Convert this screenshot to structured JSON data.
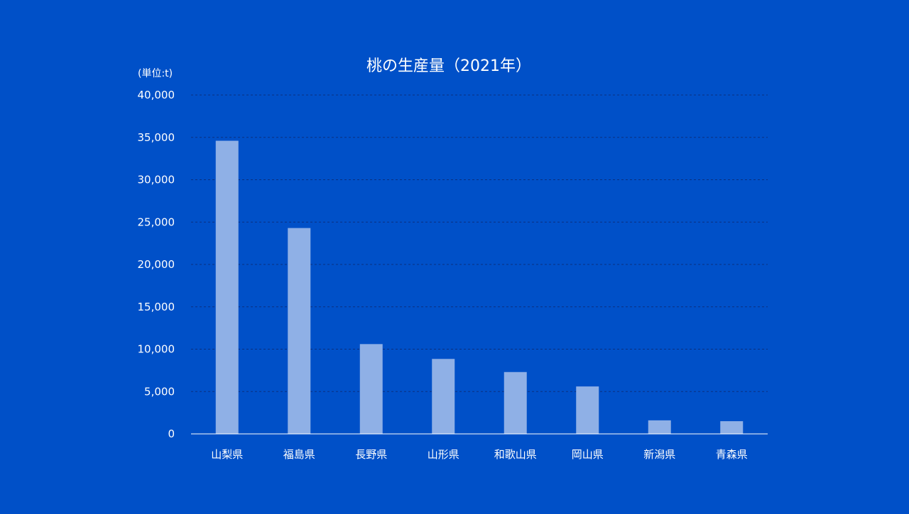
{
  "chart_data": {
    "type": "bar",
    "title": "桃の生産量（2021年）",
    "unit_label": "(単位:t)",
    "categories": [
      "山梨県",
      "福島県",
      "長野県",
      "山形県",
      "和歌山県",
      "岡山県",
      "新潟県",
      "青森県"
    ],
    "values": [
      34600,
      24300,
      10600,
      8850,
      7300,
      5600,
      1600,
      1500
    ],
    "ylim": [
      0,
      40000
    ],
    "yticks": [
      0,
      5000,
      10000,
      15000,
      20000,
      25000,
      30000,
      35000,
      40000
    ],
    "ytick_labels": [
      "0",
      "5,000",
      "10,000",
      "15,000",
      "20,000",
      "25,000",
      "30,000",
      "35,000",
      "40,000"
    ],
    "grid": true,
    "colors": {
      "background": "#0050c8",
      "bar": "#8fb0e6",
      "text": "#ffffff",
      "grid": "#0a2f80"
    }
  }
}
